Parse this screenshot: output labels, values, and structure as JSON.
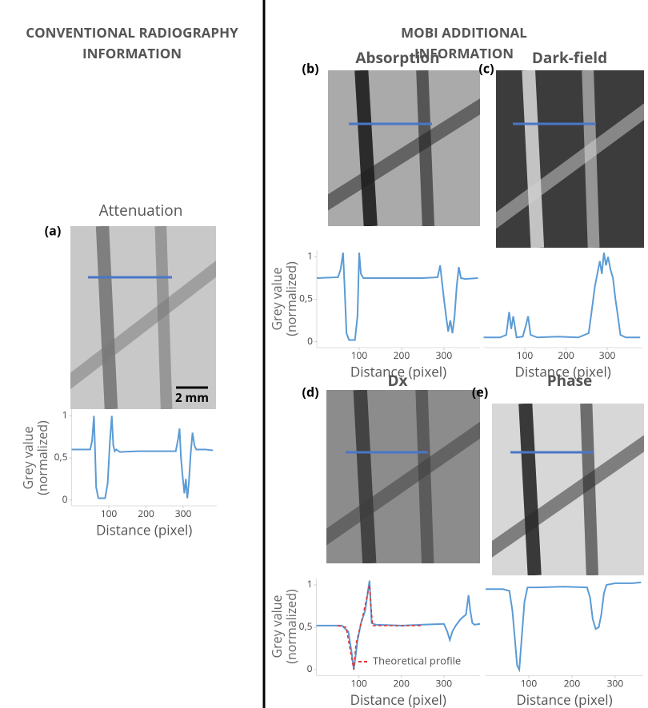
{
  "header": {
    "left": "CONVENTIONAL RADIOGRAPHY INFORMATION",
    "right": "MOBI ADDITIONAL INFORMATION"
  },
  "scale_bar": "2 mm",
  "chart_data": [
    {
      "type": "line",
      "panel": "(a)",
      "title": "Attenuation",
      "xlabel": "Distance (pixel)",
      "ylabel": "Grey value\n(normalized)",
      "xlim": [
        0,
        390
      ],
      "ylim": [
        -0.07,
        1.08
      ],
      "xticks": [
        100,
        200,
        300
      ],
      "yticks": [
        0,
        {
          "value": 0.5,
          "label": "0,5"
        },
        1
      ],
      "series": [
        {
          "color": "#5b9bd5",
          "x": [
            0,
            50,
            55,
            60,
            63,
            66,
            72,
            90,
            97,
            103,
            108,
            112,
            116,
            120,
            130,
            180,
            230,
            280,
            286,
            290,
            294,
            298,
            303,
            307,
            311,
            315,
            320,
            325,
            330,
            335,
            360,
            380
          ],
          "values": [
            0.6,
            0.6,
            0.7,
            1.0,
            0.6,
            0.15,
            0.02,
            0.02,
            0.2,
            0.7,
            1.0,
            0.65,
            0.58,
            0.6,
            0.57,
            0.58,
            0.58,
            0.58,
            0.72,
            0.85,
            0.5,
            0.3,
            0.08,
            0.25,
            0.02,
            0.2,
            0.55,
            0.8,
            0.65,
            0.6,
            0.6,
            0.59
          ]
        }
      ]
    },
    {
      "type": "line",
      "panel": "(b)",
      "title": "Absorption",
      "xlabel": "Distance (pixel)",
      "ylabel": "Grey value\n(normalized)",
      "xlim": [
        0,
        385
      ],
      "ylim": [
        -0.07,
        1.08
      ],
      "xticks": [
        100,
        200,
        300
      ],
      "yticks": [
        0,
        {
          "value": 0.5,
          "label": "0,5"
        },
        1
      ],
      "series": [
        {
          "color": "#5b9bd5",
          "x": [
            0,
            50,
            56,
            62,
            66,
            70,
            76,
            90,
            96,
            100,
            104,
            110,
            150,
            200,
            250,
            285,
            291,
            295,
            300,
            305,
            310,
            315,
            320,
            325,
            330,
            335,
            340,
            350,
            380
          ],
          "values": [
            0.75,
            0.76,
            0.85,
            1.05,
            0.6,
            0.1,
            0.02,
            0.02,
            0.3,
            1.05,
            0.8,
            0.75,
            0.75,
            0.75,
            0.75,
            0.76,
            0.9,
            0.72,
            0.5,
            0.3,
            0.12,
            0.25,
            0.1,
            0.3,
            0.65,
            0.88,
            0.75,
            0.74,
            0.75
          ]
        }
      ]
    },
    {
      "type": "line",
      "panel": "(c)",
      "title": "Dark-field",
      "xlabel": "Distance (pixel)",
      "xlim": [
        0,
        385
      ],
      "ylim": [
        -0.07,
        1.08
      ],
      "xticks": [
        100,
        200,
        300
      ],
      "series": [
        {
          "color": "#5b9bd5",
          "x": [
            0,
            40,
            55,
            62,
            67,
            72,
            80,
            95,
            102,
            108,
            114,
            130,
            180,
            230,
            255,
            262,
            270,
            276,
            282,
            287,
            292,
            297,
            302,
            308,
            314,
            320,
            326,
            332,
            345,
            380
          ],
          "values": [
            0.05,
            0.05,
            0.08,
            0.35,
            0.15,
            0.3,
            0.05,
            0.06,
            0.18,
            0.3,
            0.08,
            0.05,
            0.06,
            0.05,
            0.1,
            0.35,
            0.65,
            0.8,
            0.95,
            0.8,
            1.05,
            0.9,
            1.0,
            0.85,
            0.75,
            0.5,
            0.3,
            0.08,
            0.05,
            0.05
          ]
        }
      ]
    },
    {
      "type": "line",
      "panel": "(d)",
      "title": "Dx",
      "xlabel": "Distance (pixel)",
      "ylabel": "Grey value\n(normalized)",
      "xlim": [
        0,
        385
      ],
      "ylim": [
        -0.07,
        1.08
      ],
      "xticks": [
        100,
        200,
        300
      ],
      "yticks": [
        0,
        {
          "value": 0.5,
          "label": "0,5"
        },
        1
      ],
      "series": [
        {
          "color": "#5b9bd5",
          "x": [
            0,
            60,
            75,
            83,
            88,
            92,
            97,
            105,
            115,
            122,
            125,
            130,
            140,
            200,
            250,
            300,
            308,
            314,
            320,
            328,
            340,
            352,
            358,
            362,
            367,
            372,
            385
          ],
          "values": [
            0.52,
            0.52,
            0.45,
            0.2,
            0.0,
            0.15,
            0.35,
            0.55,
            0.7,
            0.95,
            1.05,
            0.55,
            0.53,
            0.52,
            0.53,
            0.54,
            0.45,
            0.35,
            0.45,
            0.52,
            0.6,
            0.65,
            0.88,
            0.7,
            0.55,
            0.53,
            0.54
          ]
        },
        {
          "name": "Theoretical profile",
          "color": "#e03030",
          "x": [
            50,
            70,
            88,
            93,
            110,
            125,
            132,
            180,
            250
          ],
          "values": [
            0.52,
            0.5,
            0.0,
            0.3,
            0.65,
            1.0,
            0.52,
            0.52,
            0.52
          ]
        }
      ]
    },
    {
      "type": "line",
      "panel": "(e)",
      "title": "Phase",
      "xlabel": "Distance (pixel)",
      "xlim": [
        0,
        365
      ],
      "ylim": [
        -0.07,
        1.08
      ],
      "xticks": [
        100,
        200,
        300
      ],
      "series": [
        {
          "color": "#5b9bd5",
          "x": [
            0,
            40,
            55,
            62,
            68,
            73,
            78,
            84,
            90,
            97,
            120,
            180,
            235,
            242,
            248,
            255,
            262,
            268,
            274,
            280,
            300,
            340,
            360
          ],
          "values": [
            0.95,
            0.95,
            0.93,
            0.7,
            0.35,
            0.05,
            0.0,
            0.4,
            0.8,
            0.97,
            0.97,
            0.98,
            0.97,
            0.85,
            0.6,
            0.48,
            0.5,
            0.65,
            0.9,
            1.0,
            1.02,
            1.02,
            1.03
          ]
        }
      ]
    }
  ]
}
